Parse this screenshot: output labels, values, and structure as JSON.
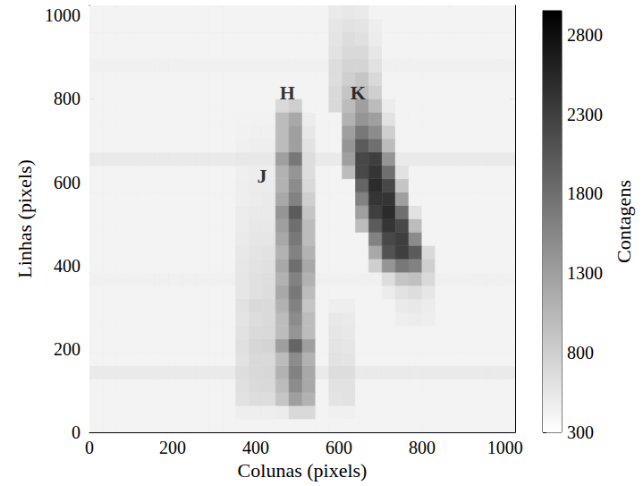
{
  "chart_data": {
    "type": "heatmap",
    "xlabel": "Colunas (pixels)",
    "ylabel": "Linhas (pixels)",
    "xlim": [
      0,
      1024
    ],
    "ylim": [
      0,
      1024
    ],
    "xticks": [
      0,
      200,
      400,
      600,
      800,
      1000
    ],
    "yticks": [
      0,
      200,
      400,
      600,
      800,
      1000
    ],
    "color": "Greys",
    "x": [
      16,
      48,
      80,
      112,
      144,
      176,
      208,
      240,
      272,
      304,
      336,
      368,
      400,
      432,
      464,
      496,
      528,
      560,
      592,
      624,
      656,
      688,
      720,
      752,
      784,
      816,
      848,
      880,
      912,
      944,
      976,
      1008
    ],
    "y": [
      16,
      48,
      80,
      112,
      144,
      176,
      208,
      240,
      272,
      304,
      336,
      368,
      400,
      432,
      464,
      496,
      528,
      560,
      592,
      624,
      656,
      688,
      720,
      752,
      784,
      816,
      848,
      880,
      912,
      944,
      976,
      1008
    ],
    "z": [
      [
        420,
        420,
        420,
        420,
        420,
        420,
        420,
        420,
        420,
        420,
        420,
        420,
        420,
        420,
        420,
        420,
        420,
        420,
        420,
        420,
        420,
        420,
        420,
        420,
        420,
        420,
        420,
        420,
        420,
        420,
        420,
        420
      ],
      [
        420,
        420,
        420,
        420,
        420,
        420,
        420,
        420,
        420,
        420,
        420,
        480,
        480,
        480,
        500,
        700,
        700,
        420,
        460,
        460,
        420,
        420,
        420,
        420,
        420,
        420,
        420,
        420,
        420,
        420,
        420,
        420
      ],
      [
        420,
        420,
        420,
        420,
        420,
        420,
        420,
        420,
        420,
        420,
        420,
        600,
        650,
        650,
        900,
        1300,
        1100,
        420,
        580,
        600,
        420,
        420,
        420,
        420,
        420,
        420,
        420,
        420,
        420,
        420,
        420,
        420
      ],
      [
        420,
        420,
        420,
        420,
        420,
        420,
        420,
        420,
        420,
        420,
        420,
        620,
        680,
        700,
        1000,
        1500,
        1200,
        420,
        600,
        600,
        420,
        420,
        420,
        420,
        420,
        420,
        420,
        420,
        420,
        420,
        420,
        420
      ],
      [
        520,
        520,
        520,
        520,
        520,
        520,
        520,
        520,
        520,
        520,
        520,
        650,
        700,
        720,
        1100,
        1600,
        1200,
        520,
        650,
        650,
        520,
        520,
        520,
        520,
        520,
        520,
        520,
        520,
        520,
        520,
        520,
        520
      ],
      [
        420,
        420,
        420,
        420,
        420,
        420,
        420,
        420,
        420,
        420,
        420,
        600,
        700,
        700,
        1000,
        1500,
        1100,
        420,
        600,
        580,
        420,
        420,
        420,
        420,
        420,
        420,
        420,
        420,
        420,
        420,
        420,
        420
      ],
      [
        420,
        420,
        420,
        420,
        420,
        420,
        420,
        420,
        420,
        420,
        420,
        620,
        720,
        750,
        1300,
        1900,
        1300,
        420,
        580,
        560,
        420,
        420,
        420,
        420,
        420,
        420,
        420,
        420,
        420,
        420,
        420,
        420
      ],
      [
        420,
        420,
        420,
        420,
        420,
        420,
        420,
        420,
        420,
        420,
        420,
        600,
        680,
        700,
        1000,
        1400,
        1000,
        420,
        560,
        540,
        420,
        420,
        420,
        420,
        420,
        420,
        420,
        420,
        420,
        420,
        420,
        420
      ],
      [
        420,
        420,
        420,
        420,
        420,
        420,
        420,
        420,
        420,
        420,
        420,
        580,
        650,
        680,
        1000,
        1500,
        1000,
        420,
        540,
        520,
        420,
        420,
        420,
        480,
        500,
        480,
        420,
        420,
        420,
        420,
        420,
        420
      ],
      [
        420,
        420,
        420,
        420,
        420,
        420,
        420,
        420,
        420,
        420,
        420,
        600,
        700,
        680,
        1100,
        1600,
        900,
        420,
        480,
        480,
        420,
        420,
        420,
        520,
        540,
        500,
        420,
        420,
        420,
        420,
        420,
        420
      ],
      [
        420,
        420,
        420,
        420,
        420,
        420,
        420,
        420,
        420,
        420,
        420,
        560,
        620,
        650,
        1200,
        1700,
        1000,
        420,
        420,
        420,
        420,
        420,
        500,
        600,
        650,
        560,
        420,
        420,
        420,
        420,
        420,
        420
      ],
      [
        460,
        460,
        460,
        460,
        460,
        460,
        460,
        460,
        460,
        460,
        460,
        560,
        620,
        640,
        1100,
        1600,
        1100,
        460,
        460,
        460,
        460,
        460,
        650,
        900,
        950,
        700,
        460,
        460,
        460,
        460,
        460,
        460
      ],
      [
        420,
        420,
        420,
        420,
        420,
        420,
        420,
        420,
        420,
        420,
        420,
        550,
        600,
        620,
        1200,
        1800,
        1200,
        420,
        420,
        420,
        420,
        800,
        1400,
        1700,
        1600,
        800,
        420,
        420,
        420,
        420,
        420,
        420
      ],
      [
        420,
        420,
        420,
        420,
        420,
        420,
        420,
        420,
        420,
        420,
        420,
        540,
        580,
        600,
        1100,
        1600,
        1100,
        420,
        420,
        420,
        420,
        1200,
        2100,
        2300,
        2000,
        700,
        420,
        420,
        420,
        420,
        420,
        420
      ],
      [
        420,
        420,
        420,
        420,
        420,
        420,
        420,
        420,
        420,
        420,
        420,
        520,
        560,
        560,
        1200,
        1700,
        1000,
        420,
        420,
        420,
        420,
        1600,
        2200,
        2300,
        1500,
        420,
        420,
        420,
        420,
        420,
        420,
        420
      ],
      [
        420,
        420,
        420,
        420,
        420,
        420,
        420,
        420,
        420,
        420,
        420,
        500,
        540,
        540,
        1300,
        1800,
        1000,
        420,
        420,
        420,
        1000,
        2000,
        2400,
        2200,
        1000,
        420,
        420,
        420,
        420,
        420,
        420,
        420
      ],
      [
        420,
        420,
        420,
        420,
        420,
        420,
        420,
        420,
        420,
        420,
        420,
        500,
        520,
        520,
        1400,
        2000,
        900,
        420,
        420,
        420,
        1300,
        2300,
        2500,
        1800,
        600,
        420,
        420,
        420,
        420,
        420,
        420,
        420
      ],
      [
        420,
        420,
        420,
        420,
        420,
        420,
        420,
        420,
        420,
        420,
        420,
        480,
        500,
        520,
        1200,
        1600,
        800,
        420,
        420,
        420,
        1600,
        2400,
        2400,
        1300,
        420,
        420,
        420,
        420,
        420,
        420,
        420,
        420
      ],
      [
        420,
        420,
        420,
        420,
        420,
        420,
        420,
        420,
        420,
        420,
        420,
        480,
        500,
        500,
        1100,
        1500,
        700,
        420,
        420,
        420,
        1900,
        2500,
        2200,
        900,
        420,
        420,
        420,
        420,
        420,
        420,
        420,
        420
      ],
      [
        420,
        420,
        420,
        420,
        420,
        420,
        420,
        420,
        420,
        420,
        420,
        470,
        490,
        490,
        1100,
        1400,
        650,
        420,
        420,
        1000,
        2200,
        2400,
        1800,
        600,
        420,
        420,
        420,
        420,
        420,
        420,
        420,
        420
      ],
      [
        520,
        520,
        520,
        520,
        520,
        520,
        520,
        520,
        520,
        520,
        520,
        540,
        540,
        540,
        1300,
        1700,
        650,
        520,
        520,
        1300,
        2200,
        2300,
        1400,
        520,
        520,
        520,
        520,
        520,
        520,
        520,
        520,
        520
      ],
      [
        420,
        420,
        420,
        420,
        420,
        420,
        420,
        420,
        420,
        420,
        420,
        460,
        480,
        480,
        1000,
        1300,
        600,
        420,
        420,
        1400,
        2000,
        1800,
        1000,
        420,
        420,
        420,
        420,
        420,
        420,
        420,
        420,
        420
      ],
      [
        420,
        420,
        420,
        420,
        420,
        420,
        420,
        420,
        420,
        420,
        420,
        450,
        460,
        460,
        1000,
        1300,
        550,
        420,
        420,
        1300,
        1700,
        1500,
        800,
        420,
        420,
        420,
        420,
        420,
        420,
        420,
        420,
        420
      ],
      [
        420,
        420,
        420,
        420,
        420,
        420,
        420,
        420,
        420,
        420,
        420,
        440,
        440,
        440,
        1000,
        1200,
        500,
        420,
        420,
        1100,
        1400,
        1300,
        600,
        420,
        420,
        420,
        420,
        420,
        420,
        420,
        420,
        420
      ],
      [
        420,
        420,
        420,
        420,
        420,
        420,
        420,
        420,
        420,
        420,
        420,
        420,
        420,
        420,
        700,
        800,
        420,
        420,
        700,
        1000,
        1300,
        1000,
        500,
        420,
        420,
        420,
        420,
        420,
        420,
        420,
        420,
        420
      ],
      [
        420,
        420,
        420,
        420,
        420,
        420,
        420,
        420,
        420,
        420,
        420,
        420,
        420,
        420,
        420,
        420,
        420,
        420,
        700,
        900,
        1000,
        800,
        420,
        420,
        420,
        420,
        420,
        420,
        420,
        420,
        420,
        420
      ],
      [
        420,
        420,
        420,
        420,
        420,
        420,
        420,
        420,
        420,
        420,
        420,
        420,
        420,
        420,
        420,
        420,
        420,
        420,
        650,
        800,
        900,
        700,
        420,
        420,
        420,
        420,
        420,
        420,
        420,
        420,
        420,
        420
      ],
      [
        460,
        460,
        460,
        460,
        460,
        460,
        460,
        460,
        460,
        460,
        460,
        460,
        460,
        460,
        460,
        460,
        460,
        460,
        650,
        750,
        750,
        600,
        460,
        460,
        460,
        460,
        460,
        460,
        460,
        460,
        460,
        460
      ],
      [
        420,
        420,
        420,
        420,
        420,
        420,
        420,
        420,
        420,
        420,
        420,
        420,
        420,
        420,
        420,
        420,
        420,
        420,
        600,
        700,
        700,
        550,
        420,
        420,
        420,
        420,
        420,
        420,
        420,
        420,
        420,
        420
      ],
      [
        420,
        420,
        420,
        420,
        420,
        420,
        420,
        420,
        420,
        420,
        420,
        420,
        420,
        420,
        420,
        420,
        420,
        420,
        580,
        650,
        620,
        500,
        420,
        420,
        420,
        420,
        420,
        420,
        420,
        420,
        420,
        420
      ],
      [
        420,
        420,
        420,
        420,
        420,
        420,
        420,
        420,
        420,
        420,
        420,
        420,
        420,
        420,
        420,
        420,
        420,
        420,
        560,
        600,
        580,
        480,
        420,
        420,
        420,
        420,
        420,
        420,
        420,
        420,
        420,
        420
      ],
      [
        420,
        420,
        420,
        420,
        420,
        420,
        420,
        420,
        420,
        420,
        420,
        420,
        420,
        420,
        420,
        420,
        420,
        420,
        520,
        540,
        520,
        420,
        420,
        420,
        420,
        420,
        420,
        420,
        420,
        420,
        420,
        420
      ]
    ],
    "colorbar": {
      "label": "Contagens",
      "range": [
        300,
        2950
      ],
      "ticks": [
        300,
        800,
        1300,
        1800,
        2300,
        2800
      ]
    },
    "annotations": [
      {
        "text": "J",
        "x": 415,
        "y": 616
      },
      {
        "text": "H",
        "x": 476,
        "y": 815
      },
      {
        "text": "K",
        "x": 646,
        "y": 815
      }
    ]
  }
}
